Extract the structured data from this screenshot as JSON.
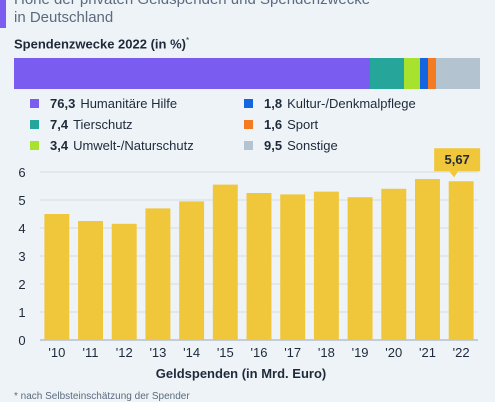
{
  "header": {
    "title_line1": "Höhe der privaten Geldspenden und Spendenzwecke",
    "title_line2": "in Deutschland"
  },
  "breakdown": {
    "heading": "Spendenzwecke 2022 (in %)",
    "heading_marker": "*",
    "segments": [
      {
        "value": 76.3,
        "label_value": "76,3",
        "label": "Humanitäre Hilfe",
        "color": "#7a5cf0"
      },
      {
        "value": 7.4,
        "label_value": "7,4",
        "label": "Tierschutz",
        "color": "#26a69a"
      },
      {
        "value": 3.4,
        "label_value": "3,4",
        "label": "Umwelt-/Naturschutz",
        "color": "#a6e22e"
      },
      {
        "value": 1.8,
        "label_value": "1,8",
        "label": "Kultur-/Denkmalpflege",
        "color": "#1565e0"
      },
      {
        "value": 1.6,
        "label_value": "1,6",
        "label": "Sport",
        "color": "#f47b20"
      },
      {
        "value": 9.5,
        "label_value": "9,5",
        "label": "Sonstige",
        "color": "#b3c3cf"
      }
    ]
  },
  "chart_data": {
    "type": "bar",
    "categories": [
      "'10",
      "'11",
      "'12",
      "'13",
      "'14",
      "'15",
      "'16",
      "'17",
      "'18",
      "'19",
      "'20",
      "'21",
      "'22"
    ],
    "values": [
      4.5,
      4.25,
      4.15,
      4.7,
      4.95,
      5.55,
      5.25,
      5.2,
      5.3,
      5.1,
      5.4,
      5.75,
      5.67
    ],
    "ylim": [
      0,
      6
    ],
    "yticks": [
      0,
      1,
      2,
      3,
      4,
      5,
      6
    ],
    "xlabel": "Geldspenden (in Mrd. Euro)",
    "ylabel": "",
    "grid": true,
    "bar_color": "#f0c73a",
    "highlight": {
      "category": "'22",
      "label": "5,67",
      "color": "#f0c73a"
    }
  },
  "footnote": "* nach Selbsteinschätzung der Spender"
}
